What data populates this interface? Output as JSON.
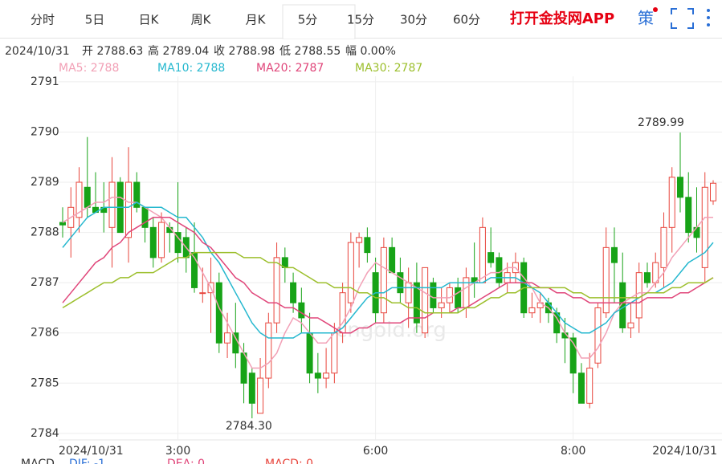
{
  "tabs": [
    "分时",
    "5日",
    "日K",
    "周K",
    "月K",
    "5分",
    "15分",
    "30分",
    "60分"
  ],
  "active_tab": 5,
  "app_link": "打开金投网APP",
  "strategy_icon": "策",
  "info": [
    "2024/10/31",
    "开 2788.63",
    "高 2789.04",
    "收 2788.98",
    "低 2788.55",
    "幅 0.00%"
  ],
  "watermark": "cngold.org",
  "macd_labels": [
    "MACD",
    "DIF: -1",
    "DEA: 0",
    "MACD: 0"
  ],
  "chart_data": {
    "type": "candlestick",
    "categories": [
      "2024/10/31",
      null,
      null,
      null,
      null,
      null,
      null,
      null,
      null,
      null,
      null,
      null,
      null,
      null,
      "3:00",
      null,
      null,
      null,
      null,
      null,
      null,
      null,
      null,
      null,
      null,
      null,
      null,
      null,
      null,
      null,
      null,
      null,
      null,
      null,
      null,
      null,
      null,
      null,
      "6:00",
      null,
      null,
      null,
      null,
      null,
      null,
      null,
      null,
      null,
      null,
      null,
      null,
      null,
      null,
      null,
      null,
      null,
      null,
      null,
      null,
      null,
      null,
      null,
      "8:00",
      null,
      null,
      null,
      null,
      null,
      null,
      null,
      null,
      null,
      null,
      null,
      null,
      null,
      null,
      null,
      null,
      "2024/10/31"
    ],
    "open": [
      2788.2,
      2788.1,
      2788.3,
      2788.9,
      2788.5,
      2788.5,
      2788.1,
      2789.0,
      2787.9,
      2789.0,
      2788.5,
      2788.1,
      2787.5,
      2788.1,
      2788.0,
      2787.9,
      2787.6,
      2786.8,
      2786.8,
      2787.0,
      2785.8,
      2786.0,
      2785.6,
      2785.2,
      2784.4,
      2785.1,
      2786.2,
      2787.5,
      2787.0,
      2786.6,
      2786.0,
      2785.2,
      2785.1,
      2785.2,
      2786.0,
      2786.6,
      2787.8,
      2787.9,
      2787.2,
      2786.4,
      2787.7,
      2787.2,
      2786.6,
      2787.0,
      2786.0,
      2787.0,
      2786.5,
      2786.6,
      2786.9,
      2786.5,
      2787.1,
      2787.0,
      2787.6,
      2787.5,
      2787.0,
      2787.2,
      2787.4,
      2786.4,
      2786.5,
      2786.6,
      2786.4,
      2786.0,
      2785.9,
      2785.2,
      2784.6,
      2785.4,
      2786.4,
      2787.7,
      2787.0,
      2786.1,
      2786.3,
      2787.2,
      2787.0,
      2787.3,
      2788.1,
      2789.1,
      2788.7,
      2788.1,
      2787.3,
      2788.63
    ],
    "high": [
      2788.5,
      2788.9,
      2789.3,
      2789.9,
      2789.2,
      2789.0,
      2789.5,
      2789.1,
      2789.7,
      2789.2,
      2788.5,
      2788.3,
      2788.4,
      2788.2,
      2789.0,
      2788.1,
      2788.2,
      2787.3,
      2787.5,
      2787.2,
      2786.4,
      2786.6,
      2785.8,
      2785.3,
      2785.5,
      2786.4,
      2787.8,
      2787.7,
      2787.2,
      2786.9,
      2786.4,
      2785.6,
      2785.7,
      2786.2,
      2787.0,
      2788.0,
      2788.0,
      2788.1,
      2787.5,
      2787.9,
      2787.9,
      2787.5,
      2787.3,
      2787.4,
      2787.3,
      2787.1,
      2786.9,
      2787.0,
      2787.1,
      2787.3,
      2787.8,
      2788.3,
      2788.1,
      2787.6,
      2787.4,
      2787.6,
      2787.5,
      2786.8,
      2786.8,
      2786.7,
      2786.5,
      2786.3,
      2786.0,
      2785.4,
      2785.6,
      2786.6,
      2788.1,
      2788.1,
      2787.6,
      2786.6,
      2787.4,
      2787.4,
      2787.6,
      2788.4,
      2789.3,
      2789.99,
      2789.2,
      2788.9,
      2789.2,
      2789.04
    ],
    "low": [
      2787.9,
      2787.5,
      2788.0,
      2788.3,
      2788.4,
      2788.0,
      2787.3,
      2788.0,
      2787.4,
      2788.4,
      2787.8,
      2787.3,
      2787.4,
      2787.6,
      2787.4,
      2787.2,
      2786.8,
      2786.6,
      2786.0,
      2785.6,
      2785.5,
      2785.3,
      2784.6,
      2784.3,
      2784.4,
      2784.9,
      2786.0,
      2787.0,
      2786.4,
      2786.0,
      2785.0,
      2784.8,
      2784.9,
      2785.0,
      2785.8,
      2786.4,
      2787.3,
      2787.4,
      2786.2,
      2786.2,
      2787.2,
      2786.6,
      2786.1,
      2786.0,
      2785.9,
      2786.4,
      2786.3,
      2786.4,
      2786.4,
      2786.3,
      2786.7,
      2787.0,
      2787.3,
      2786.9,
      2786.8,
      2787.0,
      2786.3,
      2786.3,
      2786.2,
      2786.2,
      2785.8,
      2785.4,
      2784.8,
      2784.6,
      2784.5,
      2785.3,
      2786.3,
      2786.6,
      2786.0,
      2785.9,
      2786.0,
      2786.9,
      2786.9,
      2786.9,
      2787.6,
      2788.4,
      2787.8,
      2787.6,
      2787.0,
      2788.55
    ],
    "close": [
      2788.15,
      2788.5,
      2789.0,
      2788.5,
      2788.4,
      2788.4,
      2789.0,
      2788.0,
      2789.0,
      2788.5,
      2788.1,
      2787.5,
      2788.2,
      2788.0,
      2787.6,
      2787.5,
      2786.9,
      2786.8,
      2787.0,
      2785.8,
      2786.0,
      2785.6,
      2785.0,
      2784.6,
      2785.1,
      2786.2,
      2787.5,
      2787.3,
      2786.6,
      2786.3,
      2785.2,
      2785.1,
      2785.2,
      2786.0,
      2786.8,
      2787.8,
      2787.9,
      2787.6,
      2786.4,
      2787.7,
      2787.2,
      2786.8,
      2787.0,
      2786.2,
      2787.3,
      2786.5,
      2786.6,
      2786.9,
      2786.5,
      2787.1,
      2787.0,
      2788.1,
      2787.4,
      2787.0,
      2787.2,
      2787.4,
      2786.4,
      2786.5,
      2786.6,
      2786.4,
      2786.0,
      2785.9,
      2785.2,
      2784.6,
      2785.3,
      2786.5,
      2787.7,
      2787.4,
      2786.1,
      2786.2,
      2787.2,
      2787.0,
      2787.4,
      2788.1,
      2789.1,
      2788.7,
      2788.0,
      2787.9,
      2788.9,
      2788.98
    ],
    "up_color": "#e8453c",
    "down_color": "#17a317",
    "ma": [
      {
        "name": "MA5: 2788",
        "color": "#f2a0b6",
        "values": [
          2788.2,
          2788.3,
          2788.4,
          2788.5,
          2788.6,
          2788.6,
          2788.7,
          2788.7,
          2788.6,
          2788.6,
          2788.5,
          2788.4,
          2788.3,
          2788.1,
          2787.9,
          2787.7,
          2787.5,
          2787.2,
          2786.9,
          2786.5,
          2786.2,
          2785.9,
          2785.6,
          2785.3,
          2785.3,
          2785.4,
          2785.6,
          2786.0,
          2786.3,
          2786.2,
          2786.0,
          2785.8,
          2785.8,
          2786.0,
          2786.2,
          2786.5,
          2786.9,
          2787.2,
          2787.4,
          2787.3,
          2787.2,
          2787.1,
          2787.0,
          2786.9,
          2786.8,
          2786.7,
          2786.7,
          2786.7,
          2786.8,
          2786.9,
          2787.0,
          2787.1,
          2787.2,
          2787.2,
          2787.3,
          2787.3,
          2787.1,
          2786.9,
          2786.6,
          2786.5,
          2786.3,
          2786.0,
          2785.8,
          2785.5,
          2785.5,
          2785.7,
          2786.0,
          2786.4,
          2786.6,
          2786.7,
          2786.8,
          2786.8,
          2787.0,
          2787.2,
          2787.5,
          2787.7,
          2787.9,
          2788.1,
          2788.3,
          2788.3
        ]
      },
      {
        "name": "MA10: 2788",
        "color": "#26b8cf",
        "values": [
          2787.7,
          2787.9,
          2788.1,
          2788.3,
          2788.4,
          2788.5,
          2788.5,
          2788.5,
          2788.5,
          2788.6,
          2788.5,
          2788.5,
          2788.5,
          2788.4,
          2788.3,
          2788.3,
          2788.1,
          2787.9,
          2787.6,
          2787.4,
          2787.1,
          2786.8,
          2786.5,
          2786.2,
          2786.0,
          2785.9,
          2785.9,
          2785.9,
          2785.9,
          2786.0,
          2786.0,
          2786.0,
          2786.0,
          2786.0,
          2786.1,
          2786.3,
          2786.5,
          2786.7,
          2786.8,
          2786.8,
          2786.9,
          2786.9,
          2786.9,
          2786.9,
          2786.9,
          2786.9,
          2786.9,
          2787.0,
          2787.0,
          2787.0,
          2787.0,
          2787.0,
          2787.1,
          2787.1,
          2787.1,
          2787.1,
          2787.0,
          2786.9,
          2786.8,
          2786.6,
          2786.4,
          2786.2,
          2786.1,
          2786.0,
          2786.0,
          2786.1,
          2786.2,
          2786.4,
          2786.5,
          2786.6,
          2786.7,
          2786.8,
          2786.8,
          2786.9,
          2787.0,
          2787.2,
          2787.4,
          2787.5,
          2787.6,
          2787.8
        ]
      },
      {
        "name": "MA20: 2787",
        "color": "#e0467a",
        "values": [
          2786.6,
          2786.8,
          2787.0,
          2787.2,
          2787.4,
          2787.5,
          2787.7,
          2787.8,
          2788.0,
          2788.1,
          2788.2,
          2788.3,
          2788.3,
          2788.3,
          2788.2,
          2788.1,
          2788.0,
          2787.8,
          2787.7,
          2787.5,
          2787.3,
          2787.1,
          2787.0,
          2786.8,
          2786.7,
          2786.6,
          2786.6,
          2786.5,
          2786.5,
          2786.4,
          2786.3,
          2786.3,
          2786.2,
          2786.1,
          2786.0,
          2786.0,
          2786.1,
          2786.1,
          2786.2,
          2786.2,
          2786.2,
          2786.2,
          2786.3,
          2786.3,
          2786.3,
          2786.4,
          2786.4,
          2786.4,
          2786.5,
          2786.5,
          2786.6,
          2786.7,
          2786.8,
          2786.9,
          2787.0,
          2787.0,
          2787.0,
          2787.0,
          2786.9,
          2786.9,
          2786.8,
          2786.8,
          2786.7,
          2786.7,
          2786.6,
          2786.6,
          2786.6,
          2786.6,
          2786.6,
          2786.6,
          2786.6,
          2786.7,
          2786.7,
          2786.7,
          2786.7,
          2786.8,
          2786.8,
          2786.9,
          2787.0,
          2787.1
        ]
      },
      {
        "name": "MA30: 2787",
        "color": "#9cbf2c",
        "values": [
          2786.5,
          2786.6,
          2786.7,
          2786.8,
          2786.9,
          2787.0,
          2787.0,
          2787.1,
          2787.1,
          2787.2,
          2787.2,
          2787.2,
          2787.3,
          2787.4,
          2787.5,
          2787.5,
          2787.6,
          2787.6,
          2787.6,
          2787.6,
          2787.6,
          2787.6,
          2787.5,
          2787.5,
          2787.5,
          2787.4,
          2787.4,
          2787.3,
          2787.3,
          2787.2,
          2787.1,
          2787.0,
          2787.0,
          2786.9,
          2786.9,
          2786.9,
          2786.8,
          2786.8,
          2786.7,
          2786.7,
          2786.6,
          2786.6,
          2786.5,
          2786.5,
          2786.4,
          2786.4,
          2786.4,
          2786.4,
          2786.4,
          2786.5,
          2786.5,
          2786.6,
          2786.7,
          2786.7,
          2786.8,
          2786.8,
          2786.9,
          2786.9,
          2786.9,
          2786.9,
          2786.9,
          2786.9,
          2786.8,
          2786.8,
          2786.7,
          2786.7,
          2786.7,
          2786.7,
          2786.7,
          2786.7,
          2786.7,
          2786.8,
          2786.8,
          2786.8,
          2786.9,
          2786.9,
          2787.0,
          2787.0,
          2787.0,
          2787.1
        ]
      }
    ],
    "high_label": "2789.99",
    "low_label": "2784.30",
    "ylim": [
      2783.87,
      2791.11
    ],
    "yticks": [
      2784,
      2785,
      2786,
      2787,
      2788,
      2789,
      2790,
      2791
    ],
    "grid": true
  }
}
